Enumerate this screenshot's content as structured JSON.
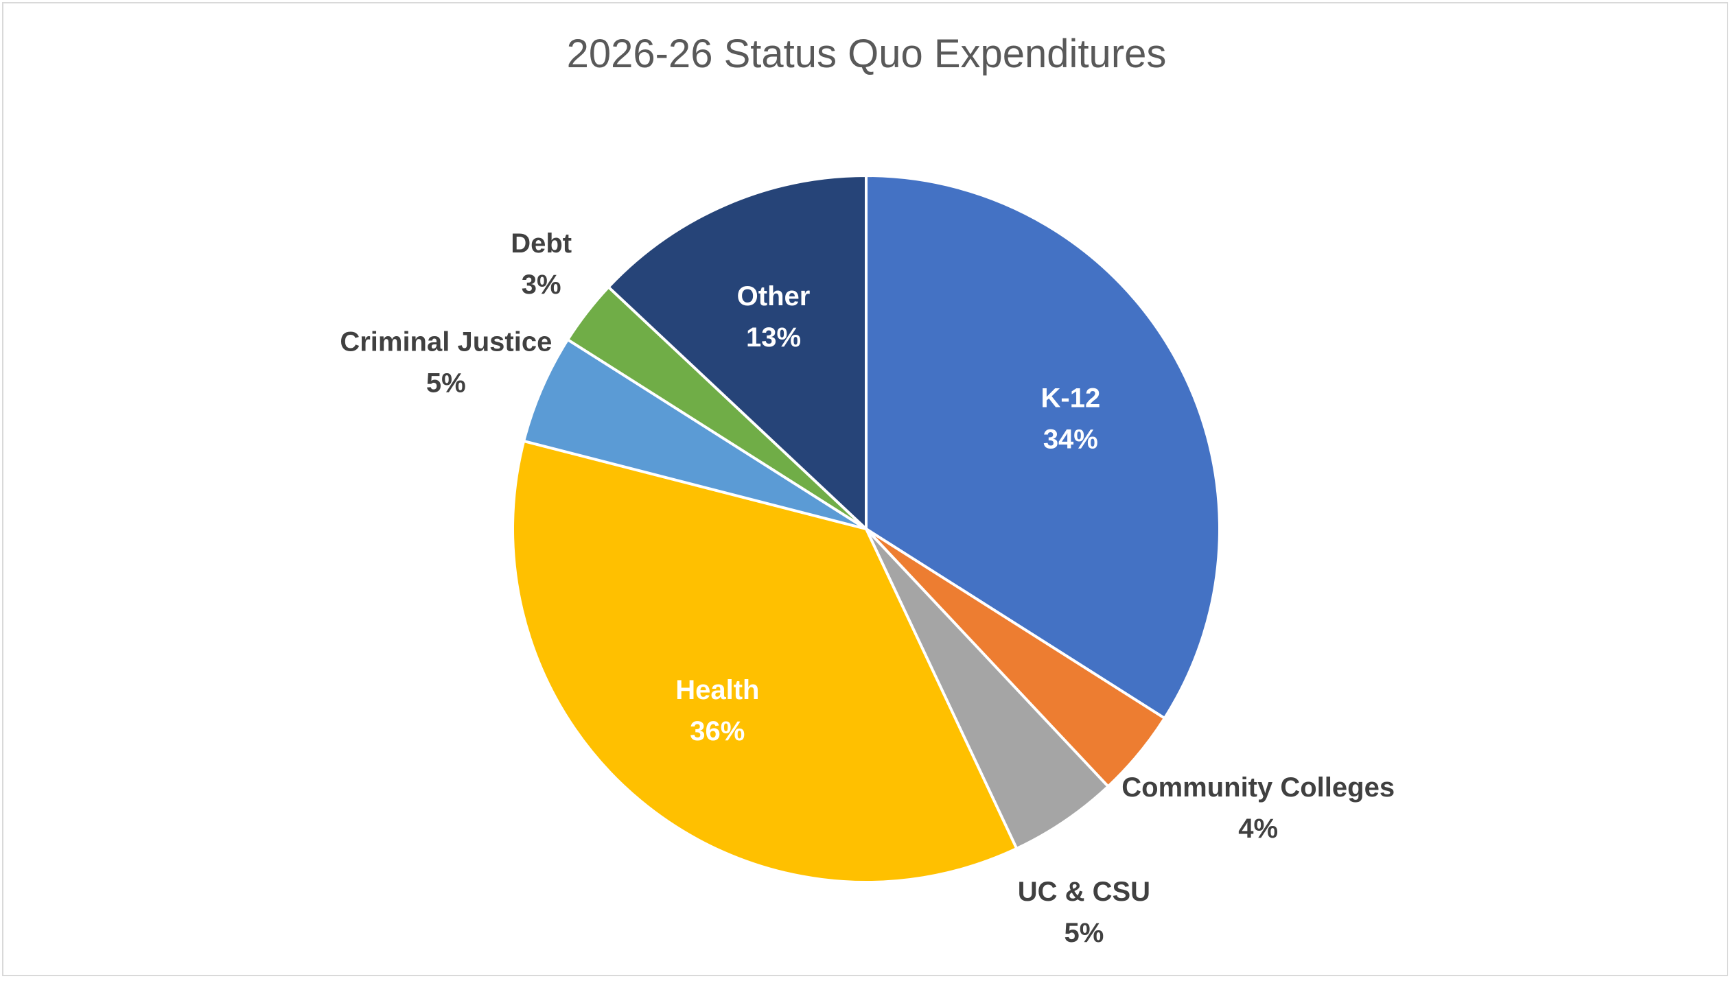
{
  "chart_data": {
    "type": "pie",
    "title": "2026-26 Status Quo Expenditures",
    "start_angle_deg": 0,
    "direction": "clockwise",
    "slices": [
      {
        "name": "K-12",
        "value": 34,
        "label": "34%",
        "color": "#4472C4",
        "label_color": "#FFFFFF"
      },
      {
        "name": "Community Colleges",
        "value": 4,
        "label": "4%",
        "color": "#ED7D31",
        "label_color": "#404040"
      },
      {
        "name": "UC & CSU",
        "value": 5,
        "label": "5%",
        "color": "#A5A5A5",
        "label_color": "#404040"
      },
      {
        "name": "Health",
        "value": 36,
        "label": "36%",
        "color": "#FFC000",
        "label_color": "#FFFFFF"
      },
      {
        "name": "Criminal Justice",
        "value": 5,
        "label": "5%",
        "color": "#5B9BD5",
        "label_color": "#404040"
      },
      {
        "name": "Debt",
        "value": 3,
        "label": "3%",
        "color": "#70AD47",
        "label_color": "#404040"
      },
      {
        "name": "Other",
        "value": 13,
        "label": "13%",
        "color": "#264478",
        "label_color": "#FFFFFF"
      }
    ],
    "legend": "none"
  }
}
